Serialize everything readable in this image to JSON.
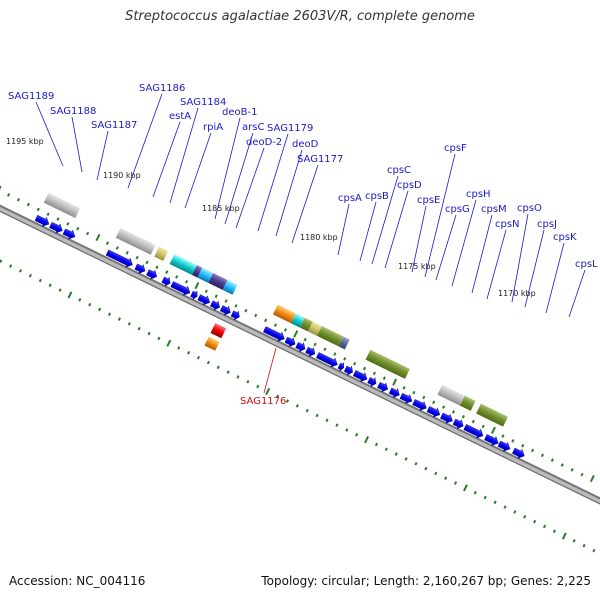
{
  "title": "Streptococcus agalactiae 2603V/R, complete genome",
  "footer": {
    "accession": "Accession: NC_004116",
    "summary": "Topology: circular; Length: 2,160,267 bp; Genes: 2,225"
  },
  "scale_ticks": [
    "1195 kbp",
    "1190 kbp",
    "1185 kbp",
    "1180 kbp",
    "1175 kbp",
    "1170 kbp"
  ],
  "gene_labels": [
    "SAG1189",
    "SAG1188",
    "SAG1187",
    "SAG1186",
    "estA",
    "SAG1184",
    "rpiA",
    "deoB-1",
    "arsC",
    "deoD-2",
    "SAG1179",
    "deoD",
    "SAG1177",
    "cpsA",
    "cpsB",
    "cpsC",
    "cpsD",
    "cpsE",
    "cpsF",
    "cpsG",
    "cpsH",
    "cpsM",
    "cpsN",
    "cpsO",
    "cpsJ",
    "cpsK",
    "cpsL"
  ],
  "highlight_label": "SAG1176",
  "colors": {
    "label": "#1a1acc",
    "highlight": "#cc1111",
    "backbone": "#888888",
    "tick": "#2a7a2a",
    "gene_arrow": "#0000ee"
  }
}
